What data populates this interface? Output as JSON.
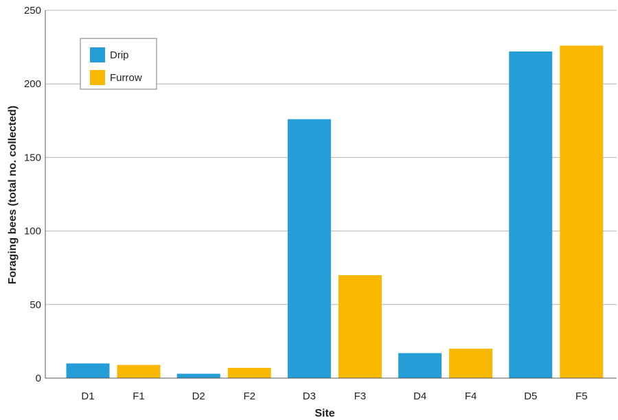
{
  "chart_data": {
    "type": "bar",
    "xlabel": "Site",
    "ylabel": "Foraging bees (total no. collected)",
    "ylim": [
      0,
      250
    ],
    "yticks": [
      0,
      50,
      100,
      150,
      200,
      250
    ],
    "grid": "horizontal",
    "legend_position": "top-left",
    "bars": [
      {
        "category": "D1",
        "series": "Drip",
        "value": 10
      },
      {
        "category": "F1",
        "series": "Furrow",
        "value": 9
      },
      {
        "category": "D2",
        "series": "Drip",
        "value": 3
      },
      {
        "category": "F2",
        "series": "Furrow",
        "value": 7
      },
      {
        "category": "D3",
        "series": "Drip",
        "value": 176
      },
      {
        "category": "F3",
        "series": "Furrow",
        "value": 70
      },
      {
        "category": "D4",
        "series": "Drip",
        "value": 17
      },
      {
        "category": "F4",
        "series": "Furrow",
        "value": 20
      },
      {
        "category": "D5",
        "series": "Drip",
        "value": 222
      },
      {
        "category": "F5",
        "series": "Furrow",
        "value": 226
      }
    ],
    "series": [
      {
        "name": "Drip",
        "color": "#259ed8"
      },
      {
        "name": "Furrow",
        "color": "#f9b800"
      }
    ]
  }
}
